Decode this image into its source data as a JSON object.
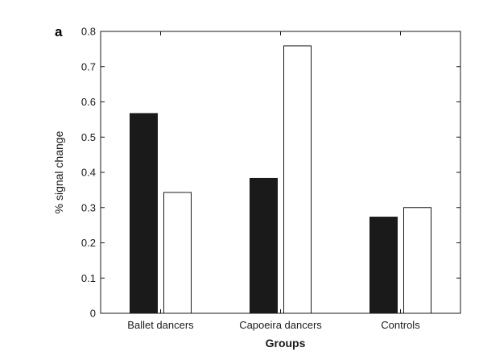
{
  "panel_label": "a",
  "chart_data": {
    "type": "bar",
    "title": "",
    "xlabel": "Groups",
    "ylabel": "% signal change",
    "categories": [
      "Ballet dancers",
      "Capoeira dancers",
      "Controls"
    ],
    "series": [
      {
        "fill": "#1a1a1a",
        "values": [
          0.567,
          0.383,
          0.273
        ]
      },
      {
        "fill": "#ffffff",
        "values": [
          0.343,
          0.759,
          0.3
        ]
      }
    ],
    "ylim": [
      0,
      0.8
    ],
    "yticks": [
      "0",
      "0.1",
      "0.2",
      "0.3",
      "0.4",
      "0.5",
      "0.6",
      "0.7",
      "0.8"
    ],
    "grid": false,
    "legend": "none"
  }
}
